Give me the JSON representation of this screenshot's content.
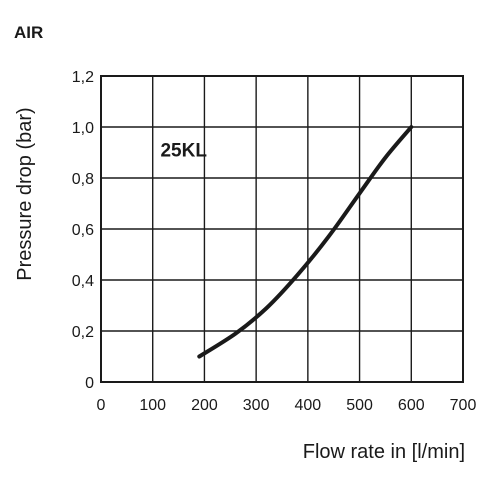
{
  "chart_data": {
    "type": "line",
    "title": "AIR",
    "xlabel": "Flow rate in [l/min]",
    "ylabel": "Pressure drop (bar)",
    "xlim": [
      0,
      700
    ],
    "ylim": [
      0,
      1.2
    ],
    "x_ticks": [
      0,
      100,
      200,
      300,
      400,
      500,
      600,
      700
    ],
    "x_tick_labels": [
      "0",
      "100",
      "200",
      "300",
      "400",
      "500",
      "600",
      "700"
    ],
    "y_ticks": [
      0,
      0.2,
      0.4,
      0.6,
      0.8,
      1.0,
      1.2
    ],
    "y_tick_labels": [
      "0",
      "0,2",
      "0,4",
      "0,6",
      "0,8",
      "1,0",
      "1,2"
    ],
    "grid": true,
    "annotations": [
      {
        "text": "25KL",
        "x": 115,
        "y": 0.885
      }
    ],
    "series": [
      {
        "color": "#1a1a1a",
        "x": [
          190,
          260,
          320,
          380,
          440,
          500,
          550,
          600
        ],
        "y": [
          0.1,
          0.19,
          0.29,
          0.42,
          0.57,
          0.74,
          0.88,
          1.0
        ]
      }
    ]
  }
}
